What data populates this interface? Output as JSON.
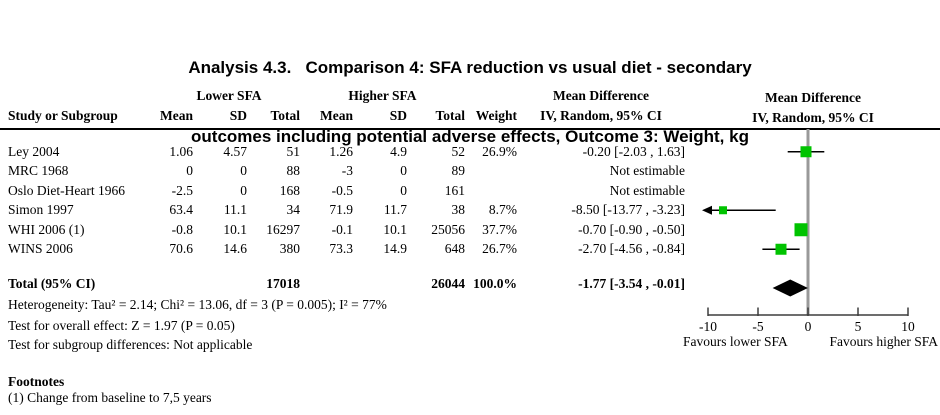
{
  "title": {
    "line1": "Analysis 4.3.   Comparison 4: SFA reduction vs usual diet - secondary",
    "line2": "outcomes including potential adverse effects, Outcome 3: Weight, kg"
  },
  "table": {
    "group1_header": "Lower SFA",
    "group2_header": "Higher SFA",
    "effect_header": "Mean Difference",
    "effect_subheader": "IV, Random, 95% CI",
    "plot_header": "Mean Difference",
    "plot_subheader": "IV, Random, 95% CI",
    "columns": {
      "study": "Study or Subgroup",
      "mean": "Mean",
      "sd": "SD",
      "total": "Total",
      "weight": "Weight"
    }
  },
  "chart_data": {
    "type": "forest",
    "effect_measure": "Mean Difference",
    "method": "IV, Random, 95% CI",
    "axis": {
      "min": -10,
      "max": 10,
      "ticks": [
        -10,
        -5,
        0,
        5,
        10
      ],
      "favours_left": "Favours lower SFA",
      "favours_right": "Favours higher SFA"
    },
    "studies": [
      {
        "study": "Ley 2004",
        "mean1": "1.06",
        "sd1": "4.57",
        "total1": "51",
        "mean2": "1.26",
        "sd2": "4.9",
        "total2": "52",
        "weight": "26.9%",
        "weight_pct": 26.9,
        "ci_text": "-0.20 [-2.03 , 1.63]",
        "md": -0.2,
        "lo": -2.03,
        "hi": 1.63,
        "estimable": true
      },
      {
        "study": "MRC 1968",
        "mean1": "0",
        "sd1": "0",
        "total1": "88",
        "mean2": "-3",
        "sd2": "0",
        "total2": "89",
        "weight": "",
        "weight_pct": 0,
        "ci_text": "Not estimable",
        "md": null,
        "lo": null,
        "hi": null,
        "estimable": false
      },
      {
        "study": "Oslo Diet-Heart 1966",
        "mean1": "-2.5",
        "sd1": "0",
        "total1": "168",
        "mean2": "-0.5",
        "sd2": "0",
        "total2": "161",
        "weight": "",
        "weight_pct": 0,
        "ci_text": "Not estimable",
        "md": null,
        "lo": null,
        "hi": null,
        "estimable": false
      },
      {
        "study": "Simon 1997",
        "mean1": "63.4",
        "sd1": "11.1",
        "total1": "34",
        "mean2": "71.9",
        "sd2": "11.7",
        "total2": "38",
        "weight": "8.7%",
        "weight_pct": 8.7,
        "ci_text": "-8.50 [-13.77 , -3.23]",
        "md": -8.5,
        "lo": -13.77,
        "hi": -3.23,
        "estimable": true
      },
      {
        "study": "WHI 2006 (1)",
        "mean1": "-0.8",
        "sd1": "10.1",
        "total1": "16297",
        "mean2": "-0.1",
        "sd2": "10.1",
        "total2": "25056",
        "weight": "37.7%",
        "weight_pct": 37.7,
        "ci_text": "-0.70 [-0.90 , -0.50]",
        "md": -0.7,
        "lo": -0.9,
        "hi": -0.5,
        "estimable": true
      },
      {
        "study": "WINS 2006",
        "mean1": "70.6",
        "sd1": "14.6",
        "total1": "380",
        "mean2": "73.3",
        "sd2": "14.9",
        "total2": "648",
        "weight": "26.7%",
        "weight_pct": 26.7,
        "ci_text": "-2.70 [-4.56 , -0.84]",
        "md": -2.7,
        "lo": -4.56,
        "hi": -0.84,
        "estimable": true
      }
    ],
    "total": {
      "label": "Total (95% CI)",
      "total1": "17018",
      "total2": "26044",
      "weight": "100.0%",
      "ci_text": "-1.77 [-3.54 , -0.01]",
      "md": -1.77,
      "lo": -3.54,
      "hi": -0.01
    }
  },
  "stats": {
    "heterogeneity": "Heterogeneity: Tau² = 2.14; Chi² = 13.06, df = 3 (P = 0.005); I² = 77%",
    "overall_effect": "Test for overall effect: Z = 1.97 (P = 0.05)",
    "subgroup": "Test for subgroup differences: Not applicable"
  },
  "footnotes": {
    "heading": "Footnotes",
    "item1": "(1) Change from baseline to 7,5 years"
  },
  "colors": {
    "marker": "#00C300",
    "diamond": "#000000",
    "zero_line": "#999999",
    "axis": "#3d3d3d"
  }
}
